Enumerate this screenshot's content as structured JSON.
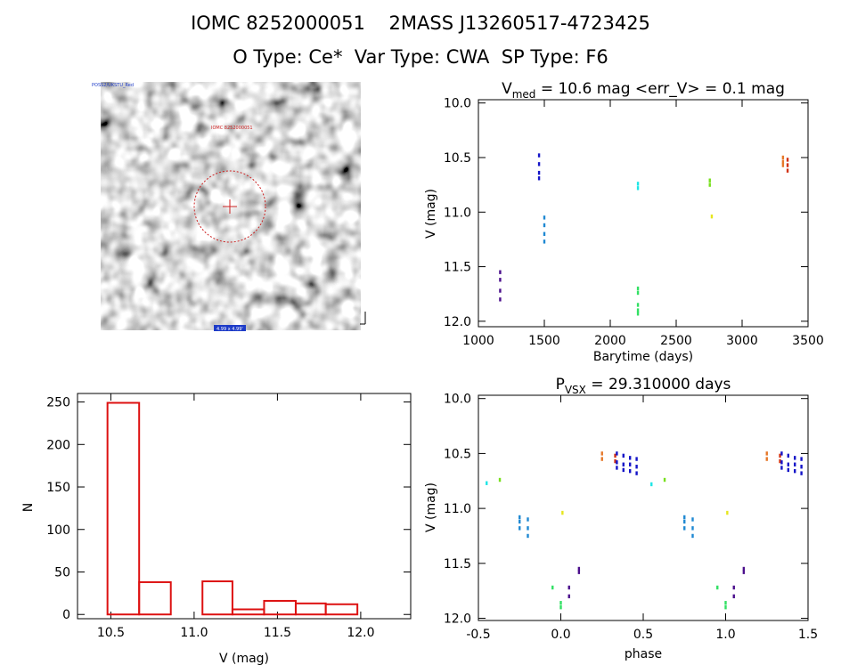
{
  "header": {
    "line1": "IOMC 8252000051    2MASS J13260517-4723425",
    "line2": "O Type: Ce*  Var Type: CWA  SP Type: F6"
  },
  "image_panel": {
    "label_top_left": "POSS2/UKSTU_Red",
    "label_target": "IOMC 8252000051",
    "label_bottom": "4.99 x 4.99'"
  },
  "chart_data": [
    {
      "type": "scatter",
      "title_prefix": "V",
      "title_sub": "med",
      "title_rest": " = 10.6 mag <err_V> = 0.1 mag",
      "xlabel": "Barytime (days)",
      "ylabel": "V (mag)",
      "xlim": [
        1000,
        3500
      ],
      "ylim": [
        12.05,
        9.97
      ],
      "y_inverted": true,
      "xticks": [
        "1000",
        "1500",
        "2000",
        "2500",
        "3000",
        "3500"
      ],
      "yticks": [
        "10.0",
        "10.5",
        "11.0",
        "11.5",
        "12.0"
      ],
      "groups": [
        {
          "color": "#4b0f8c",
          "x": 1165,
          "y": [
            11.55,
            11.62,
            11.72,
            11.8
          ]
        },
        {
          "color": "#1414c8",
          "x": 1460,
          "y": [
            10.48,
            10.56,
            10.64,
            10.69
          ]
        },
        {
          "color": "#1e88d2",
          "x": 1500,
          "y": [
            11.05,
            11.12,
            11.2,
            11.27
          ]
        },
        {
          "color": "#1ee6e6",
          "x": 2210,
          "y": [
            10.74,
            10.78
          ]
        },
        {
          "color": "#32e064",
          "x": 2210,
          "y": [
            11.7,
            11.74,
            11.85,
            11.9,
            11.93
          ]
        },
        {
          "color": "#78e01e",
          "x": 2755,
          "y": [
            10.71,
            10.75
          ]
        },
        {
          "color": "#e6e61e",
          "x": 2770,
          "y": [
            11.04
          ]
        },
        {
          "color": "#e6782a",
          "x": 3310,
          "y": [
            10.5,
            10.54,
            10.57
          ]
        },
        {
          "color": "#d23214",
          "x": 3345,
          "y": [
            10.52,
            10.57,
            10.62
          ]
        }
      ]
    },
    {
      "type": "bar",
      "title": "",
      "xlabel": "V (mag)",
      "ylabel": "N",
      "xlim": [
        10.3,
        12.3
      ],
      "ylim": [
        -5,
        260
      ],
      "xticks": [
        "10.5",
        "11.0",
        "11.5",
        "12.0"
      ],
      "yticks": [
        "0",
        "50",
        "100",
        "150",
        "200",
        "250"
      ],
      "bin_edges": [
        10.48,
        10.67,
        10.86,
        11.05,
        11.23,
        11.42,
        11.61,
        11.79,
        11.98
      ],
      "values": [
        249,
        38,
        0,
        39,
        6,
        16,
        13,
        12
      ]
    },
    {
      "type": "scatter",
      "title_prefix": "P",
      "title_sub": "VSX",
      "title_rest": " = 29.310000 days",
      "xlabel": "phase",
      "ylabel": "V (mag)",
      "xlim": [
        -0.5,
        1.5
      ],
      "ylim": [
        12.02,
        9.97
      ],
      "y_inverted": true,
      "xticks": [
        "-0.5",
        "0.0",
        "0.5",
        "1.0",
        "1.5"
      ],
      "yticks": [
        "10.0",
        "10.5",
        "11.0",
        "11.5",
        "12.0"
      ],
      "groups": [
        {
          "color": "#1ee6e6",
          "x": -0.45,
          "y": [
            10.77
          ]
        },
        {
          "color": "#78e01e",
          "x": -0.37,
          "y": [
            10.74
          ]
        },
        {
          "color": "#1e88d2",
          "x": -0.25,
          "y": [
            11.08,
            11.12,
            11.18
          ]
        },
        {
          "color": "#1e88d2",
          "x": -0.2,
          "y": [
            11.1,
            11.18,
            11.25
          ]
        },
        {
          "color": "#32e064",
          "x": -0.05,
          "y": [
            11.72
          ]
        },
        {
          "color": "#32e064",
          "x": 0.0,
          "y": [
            11.86,
            11.9
          ]
        },
        {
          "color": "#e6e61e",
          "x": 0.01,
          "y": [
            11.04
          ]
        },
        {
          "color": "#4b0f8c",
          "x": 0.05,
          "y": [
            11.72,
            11.8
          ]
        },
        {
          "color": "#4b0f8c",
          "x": 0.11,
          "y": [
            11.55,
            11.58
          ]
        },
        {
          "color": "#e6782a",
          "x": 0.25,
          "y": [
            10.5,
            10.55
          ]
        },
        {
          "color": "#d23214",
          "x": 0.33,
          "y": [
            10.52,
            10.57
          ]
        },
        {
          "color": "#1414c8",
          "x": 0.34,
          "y": [
            10.5,
            10.58,
            10.63
          ]
        },
        {
          "color": "#1414c8",
          "x": 0.38,
          "y": [
            10.52,
            10.6,
            10.65
          ]
        },
        {
          "color": "#1414c8",
          "x": 0.42,
          "y": [
            10.54,
            10.6,
            10.66
          ]
        },
        {
          "color": "#1414c8",
          "x": 0.46,
          "y": [
            10.55,
            10.62,
            10.68
          ]
        },
        {
          "color": "#1ee6e6",
          "x": 0.55,
          "y": [
            10.78
          ]
        },
        {
          "color": "#78e01e",
          "x": 0.63,
          "y": [
            10.74
          ]
        },
        {
          "color": "#1e88d2",
          "x": 0.75,
          "y": [
            11.08,
            11.12,
            11.18
          ]
        },
        {
          "color": "#1e88d2",
          "x": 0.8,
          "y": [
            11.1,
            11.18,
            11.25
          ]
        },
        {
          "color": "#32e064",
          "x": 0.95,
          "y": [
            11.72
          ]
        },
        {
          "color": "#32e064",
          "x": 1.0,
          "y": [
            11.86,
            11.9
          ]
        },
        {
          "color": "#e6e61e",
          "x": 1.01,
          "y": [
            11.04
          ]
        },
        {
          "color": "#4b0f8c",
          "x": 1.05,
          "y": [
            11.72,
            11.8
          ]
        },
        {
          "color": "#4b0f8c",
          "x": 1.11,
          "y": [
            11.55,
            11.58
          ]
        },
        {
          "color": "#e6782a",
          "x": 1.25,
          "y": [
            10.5,
            10.55
          ]
        },
        {
          "color": "#d23214",
          "x": 1.33,
          "y": [
            10.52,
            10.57
          ]
        },
        {
          "color": "#1414c8",
          "x": 1.34,
          "y": [
            10.5,
            10.58,
            10.63
          ]
        },
        {
          "color": "#1414c8",
          "x": 1.38,
          "y": [
            10.52,
            10.6,
            10.65
          ]
        },
        {
          "color": "#1414c8",
          "x": 1.42,
          "y": [
            10.54,
            10.6,
            10.66
          ]
        },
        {
          "color": "#1414c8",
          "x": 1.46,
          "y": [
            10.55,
            10.62,
            10.68
          ]
        }
      ]
    }
  ]
}
